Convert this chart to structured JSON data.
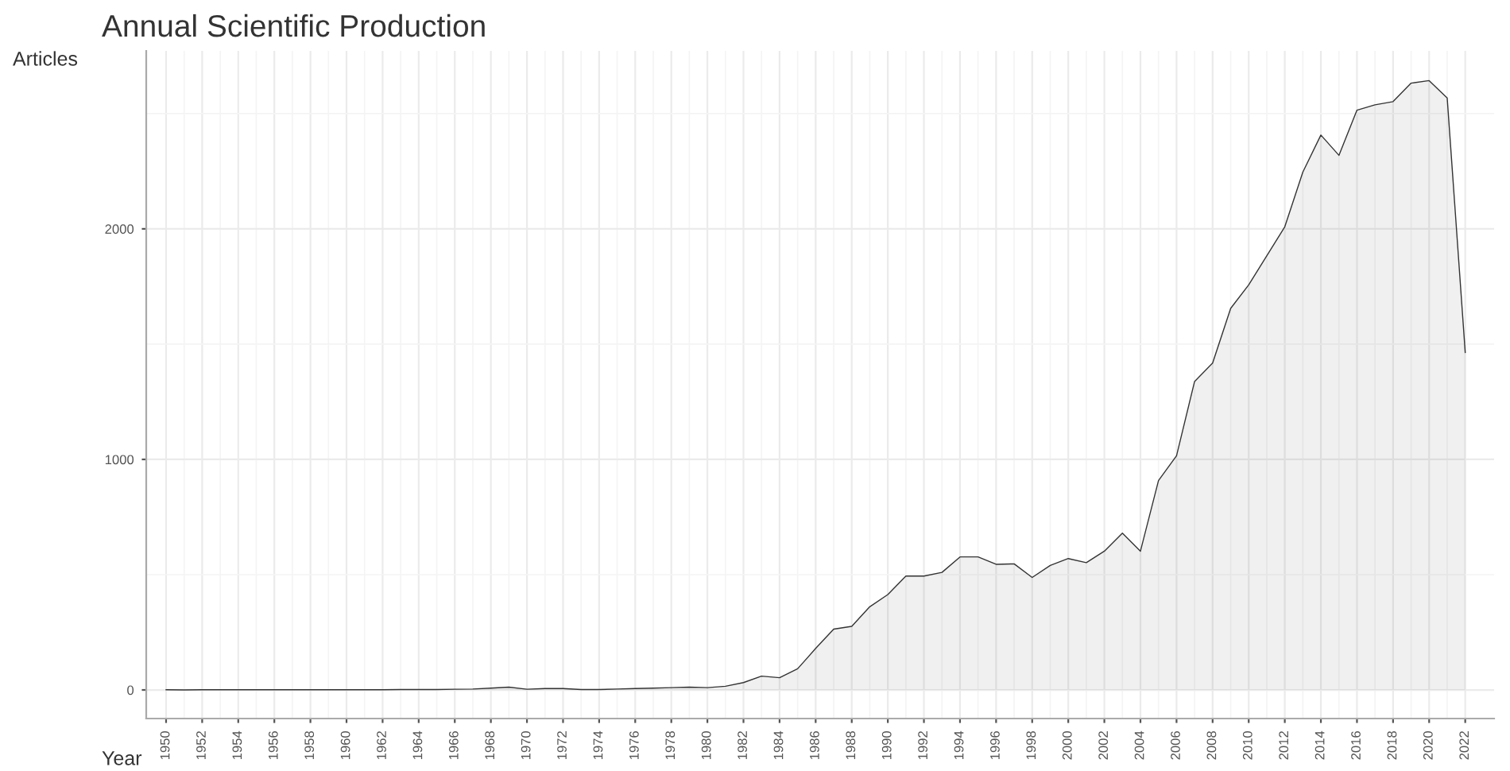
{
  "chart_data": {
    "type": "area",
    "title": "Annual Scientific Production",
    "xlabel": "Year",
    "ylabel": "Articles",
    "x": [
      1950,
      1951,
      1952,
      1953,
      1954,
      1955,
      1956,
      1957,
      1958,
      1959,
      1960,
      1961,
      1962,
      1963,
      1964,
      1965,
      1966,
      1967,
      1968,
      1969,
      1970,
      1971,
      1972,
      1973,
      1974,
      1975,
      1976,
      1977,
      1978,
      1979,
      1980,
      1981,
      1982,
      1983,
      1984,
      1985,
      1986,
      1987,
      1988,
      1989,
      1990,
      1991,
      1992,
      1993,
      1994,
      1995,
      1996,
      1997,
      1998,
      1999,
      2000,
      2001,
      2002,
      2003,
      2004,
      2005,
      2006,
      2007,
      2008,
      2009,
      2010,
      2011,
      2012,
      2013,
      2014,
      2015,
      2016,
      2017,
      2018,
      2019,
      2020,
      2021,
      2022
    ],
    "series": [
      {
        "color": "#333333",
        "values": [
          1,
          0,
          1,
          1,
          1,
          1,
          1,
          1,
          1,
          1,
          1,
          1,
          1,
          2,
          2,
          2,
          3,
          4,
          8,
          12,
          3,
          6,
          6,
          2,
          2,
          4,
          6,
          8,
          10,
          12,
          10,
          16,
          32,
          60,
          53,
          92,
          180,
          264,
          276,
          361,
          414,
          494,
          494,
          510,
          577,
          577,
          545,
          547,
          488,
          540,
          570,
          552,
          602,
          680,
          602,
          908,
          1016,
          1338,
          1418,
          1655,
          1757,
          1883,
          2009,
          2246,
          2407,
          2319,
          2515,
          2538,
          2552,
          2632,
          2643,
          2568,
          1464
        ]
      }
    ],
    "xlim": [
      1948.9,
      2023.6
    ],
    "ylim": [
      -124,
      2772
    ],
    "xticks": [
      1950,
      1952,
      1954,
      1956,
      1958,
      1960,
      1962,
      1964,
      1966,
      1968,
      1970,
      1972,
      1974,
      1976,
      1978,
      1980,
      1982,
      1984,
      1986,
      1988,
      1990,
      1992,
      1994,
      1996,
      1998,
      2000,
      2002,
      2004,
      2006,
      2008,
      2010,
      2012,
      2014,
      2016,
      2018,
      2020,
      2022
    ],
    "yticks": [
      0,
      1000,
      2000
    ],
    "grid": true,
    "legend": false
  }
}
